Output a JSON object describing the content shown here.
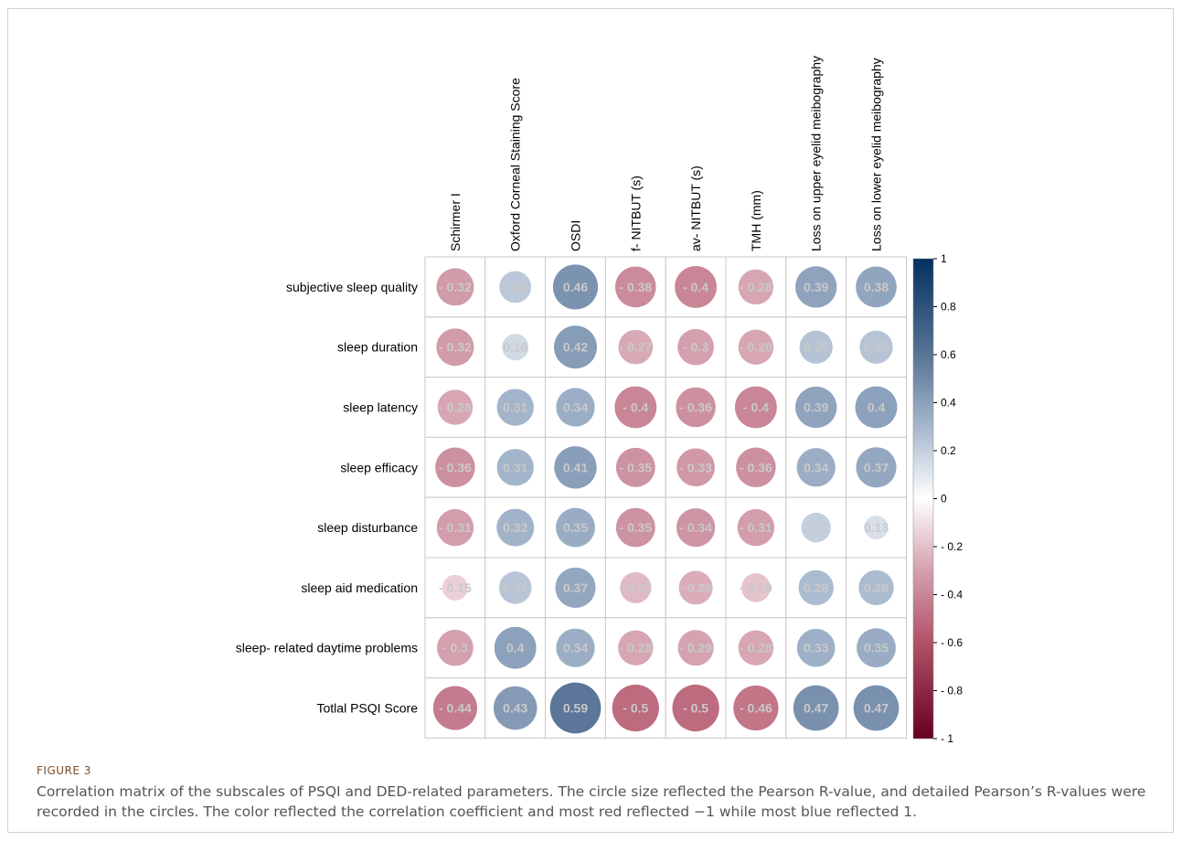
{
  "figure": {
    "label": "FIGURE 3",
    "caption": "Correlation matrix of the subscales of PSQI and DED-related parameters. The circle size reflected the Pearson R-value, and detailed Pearson’s R-values were recorded in the circles. The color reflected the correlation coefficient and most red reflected −1 while most blue reflected 1."
  },
  "chart_data": {
    "type": "heatmap",
    "title": "",
    "columns": [
      "Schirmer I",
      "Oxford Corneal Staining Score",
      "OSDI",
      "f- NITBUT (s)",
      "av- NITBUT (s)",
      "TMH (mm)",
      "Loss on upper eyelid meibography",
      "Loss on lower eyelid meibography"
    ],
    "rows": [
      "subjective sleep quality",
      "sleep duration",
      "sleep latency",
      "sleep efficacy",
      "sleep disturbance",
      "sleep aid medication",
      "sleep- related daytime problems",
      "Totlal PSQI Score"
    ],
    "values": [
      [
        -0.32,
        0.23,
        0.46,
        -0.38,
        -0.4,
        -0.28,
        0.39,
        0.38
      ],
      [
        -0.32,
        0.16,
        0.42,
        -0.27,
        -0.3,
        -0.28,
        0.25,
        0.25
      ],
      [
        -0.28,
        0.31,
        0.34,
        -0.4,
        -0.36,
        -0.4,
        0.39,
        0.4
      ],
      [
        -0.36,
        0.31,
        0.41,
        -0.35,
        -0.33,
        -0.36,
        0.34,
        0.37
      ],
      [
        -0.31,
        0.32,
        0.35,
        -0.35,
        -0.34,
        -0.31,
        0.2,
        0.13
      ],
      [
        -0.15,
        0.24,
        0.37,
        -0.22,
        -0.26,
        -0.19,
        0.28,
        0.28
      ],
      [
        -0.3,
        0.4,
        0.34,
        -0.28,
        -0.29,
        -0.28,
        0.33,
        0.35
      ],
      [
        -0.44,
        0.43,
        0.59,
        -0.5,
        -0.5,
        -0.46,
        0.47,
        0.47
      ]
    ],
    "value_labels": [
      [
        "- 0.32",
        "0.23",
        "0.46",
        "- 0.38",
        "- 0.4",
        "- 0.28",
        "0.39",
        "0.38"
      ],
      [
        "- 0.32",
        "0.16",
        "0.42",
        "- 0.27",
        "- 0.3",
        "- 0.28",
        "0.25",
        "0.25"
      ],
      [
        "- 0.28",
        "0.31",
        "0.34",
        "- 0.4",
        "- 0.36",
        "- 0.4",
        "0.39",
        "0.4"
      ],
      [
        "- 0.36",
        "0.31",
        "0.41",
        "- 0.35",
        "- 0.33",
        "- 0.36",
        "0.34",
        "0.37"
      ],
      [
        "- 0.31",
        "0.32",
        "0.35",
        "- 0.35",
        "- 0.34",
        "- 0.31",
        "0.2",
        "0.13"
      ],
      [
        "- 0.15",
        "0.24",
        "0.37",
        "- 0.22",
        "- 0.26",
        "- 0.19",
        "0.28",
        "0.28"
      ],
      [
        "- 0.3",
        "0.4",
        "0.34",
        "- 0.28",
        "- 0.29",
        "- 0.28",
        "0.33",
        "0.35"
      ],
      [
        "- 0.44",
        "0.43",
        "0.59",
        "- 0.5",
        "- 0.5",
        "- 0.46",
        "0.47",
        "0.47"
      ]
    ],
    "colorbar": {
      "range": [
        -1,
        1
      ],
      "ticks": [
        "1",
        "0.8",
        "0.6",
        "0.4",
        "0.2",
        "0",
        "- 0.2",
        "- 0.4",
        "- 0.6",
        "- 0.8",
        "- 1"
      ],
      "tick_values": [
        1,
        0.8,
        0.6,
        0.4,
        0.2,
        0,
        -0.2,
        -0.4,
        -0.6,
        -0.8,
        -1
      ],
      "colors": {
        "negative": "#67001f",
        "neutral": "#ffffff",
        "positive": "#053061"
      }
    },
    "grid": true,
    "legend": "right"
  }
}
